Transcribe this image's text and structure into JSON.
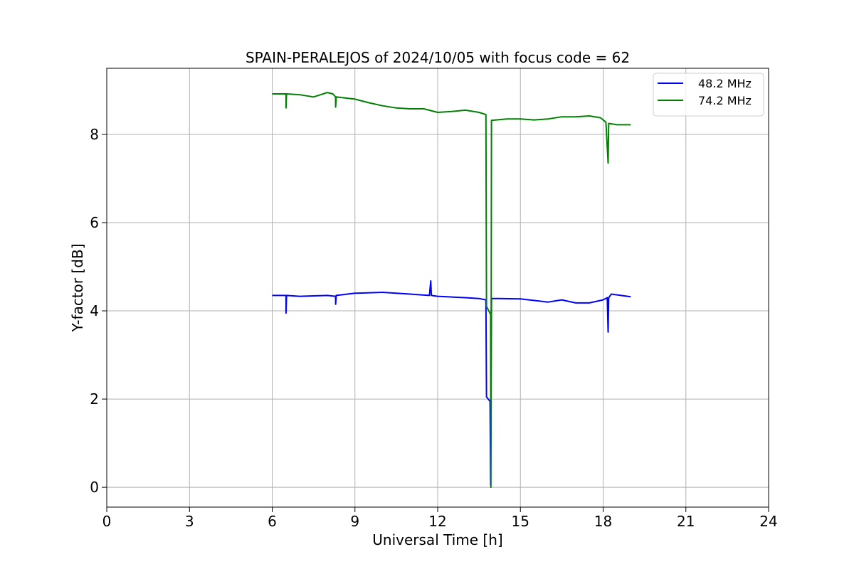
{
  "chart_data": {
    "type": "line",
    "title": "SPAIN-PERALEJOS of 2024/10/05 with focus code = 62",
    "xlabel": "Universal Time [h]",
    "ylabel": "Y-factor [dB]",
    "xlim": [
      0,
      24
    ],
    "ylim": [
      -0.45,
      9.5
    ],
    "xticks": [
      0,
      3,
      6,
      9,
      12,
      15,
      18,
      21,
      24
    ],
    "xtick_labels": [
      "0",
      "3",
      "6",
      "9",
      "12",
      "15",
      "18",
      "21",
      "24"
    ],
    "yticks": [
      0,
      2,
      4,
      6,
      8
    ],
    "ytick_labels": [
      "0",
      "2",
      "4",
      "6",
      "8"
    ],
    "grid": true,
    "legend_position": "top-right",
    "series": [
      {
        "name": "48.2 MHz",
        "color": "#0000ff",
        "x": [
          6.0,
          6.5,
          6.5,
          6.52,
          7.0,
          8.0,
          8.3,
          8.3,
          8.32,
          9.0,
          10.0,
          11.0,
          11.7,
          11.75,
          11.77,
          12.0,
          13.0,
          13.5,
          13.75,
          13.77,
          13.9,
          13.92,
          13.93,
          13.95,
          14.2,
          15.0,
          16.0,
          16.5,
          17.0,
          17.5,
          18.0,
          18.15,
          18.18,
          18.2,
          18.3,
          19.0
        ],
        "y": [
          4.35,
          4.35,
          3.95,
          4.35,
          4.33,
          4.35,
          4.33,
          4.15,
          4.35,
          4.4,
          4.42,
          4.38,
          4.35,
          4.68,
          4.35,
          4.33,
          4.3,
          4.28,
          4.25,
          2.05,
          1.95,
          0.05,
          1.2,
          4.28,
          4.28,
          4.27,
          4.2,
          4.25,
          4.18,
          4.18,
          4.25,
          4.3,
          3.52,
          4.3,
          4.38,
          4.32
        ]
      },
      {
        "name": "74.2 MHz",
        "color": "#008000",
        "x": [
          6.0,
          6.5,
          6.5,
          6.52,
          7.0,
          7.5,
          8.0,
          8.2,
          8.3,
          8.3,
          8.32,
          9.0,
          9.5,
          10.0,
          10.5,
          11.0,
          11.5,
          12.0,
          12.5,
          13.0,
          13.5,
          13.75,
          13.77,
          13.92,
          13.93,
          13.95,
          14.5,
          15.0,
          15.5,
          16.0,
          16.5,
          17.0,
          17.5,
          17.9,
          18.1,
          18.18,
          18.2,
          18.5,
          19.0
        ],
        "y": [
          8.92,
          8.92,
          8.6,
          8.92,
          8.9,
          8.85,
          8.95,
          8.92,
          8.85,
          8.62,
          8.85,
          8.8,
          8.72,
          8.65,
          8.6,
          8.58,
          8.58,
          8.5,
          8.52,
          8.55,
          8.5,
          8.45,
          4.1,
          3.92,
          0.0,
          8.32,
          8.35,
          8.35,
          8.33,
          8.35,
          8.4,
          8.4,
          8.42,
          8.38,
          8.28,
          7.35,
          8.25,
          8.22,
          8.22
        ]
      }
    ]
  }
}
